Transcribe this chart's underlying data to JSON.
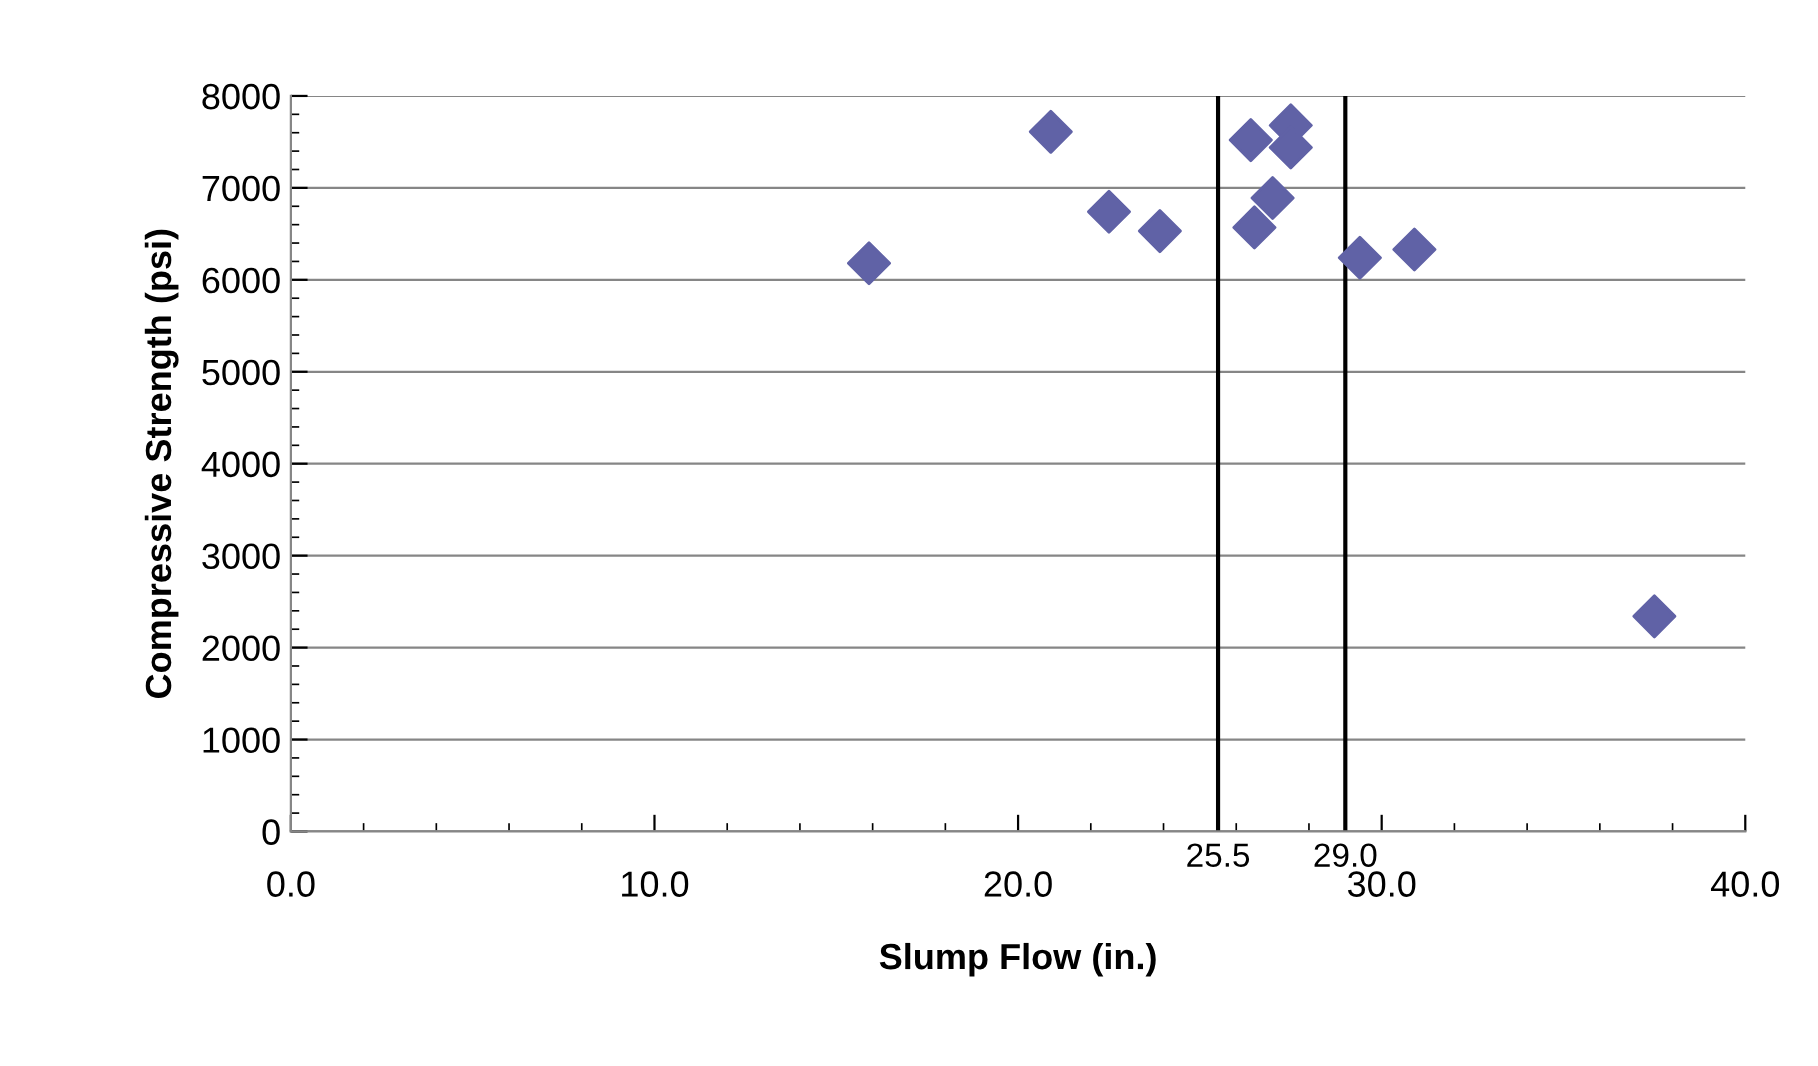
{
  "chart_data": {
    "type": "scatter",
    "xlabel": "Slump Flow (in.)",
    "ylabel": "Compressive Strength (psi)",
    "x": [
      15.9,
      20.9,
      22.5,
      23.9,
      26.4,
      26.5,
      27.0,
      27.5,
      27.5,
      29.4,
      30.9,
      37.5
    ],
    "series": [
      {
        "color": "#6062a6",
        "values": [
          6180,
          7610,
          6740,
          6530,
          7520,
          6570,
          6890,
          7680,
          7440,
          6240,
          6330,
          2340
        ]
      }
    ],
    "marker": "diamond",
    "xlim": [
      0,
      40
    ],
    "xticks": [
      {
        "value": 0,
        "label": "0.0"
      },
      {
        "value": 10,
        "label": "10.0"
      },
      {
        "value": 20,
        "label": "20.0"
      },
      {
        "value": 30,
        "label": "30.0"
      },
      {
        "value": 40,
        "label": "40.0"
      }
    ],
    "ylim": [
      0,
      8000
    ],
    "yticks": [
      0,
      1000,
      2000,
      3000,
      4000,
      5000,
      6000,
      7000,
      8000
    ],
    "grid": "y",
    "ref_lines": [
      {
        "axis": "x",
        "value": 25.5,
        "label": "25.5",
        "color": "#000000"
      },
      {
        "axis": "x",
        "value": 29.0,
        "label": "29.0",
        "color": "#000000"
      }
    ]
  }
}
